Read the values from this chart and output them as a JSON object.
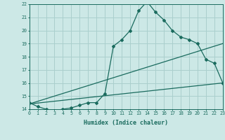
{
  "title": "",
  "xlabel": "Humidex (Indice chaleur)",
  "bg_color": "#cce8e6",
  "grid_color": "#aacfcd",
  "line_color": "#1a6b5e",
  "xmin": 0,
  "xmax": 23,
  "ymin": 14,
  "ymax": 22,
  "line1_x": [
    0,
    1,
    2,
    3,
    4,
    5,
    6,
    7,
    8,
    9,
    10,
    11,
    12,
    13,
    14,
    15,
    16,
    17,
    18,
    19,
    20,
    21,
    22,
    23
  ],
  "line1_y": [
    14.5,
    14.2,
    14.0,
    13.9,
    14.0,
    14.1,
    14.3,
    14.5,
    14.5,
    15.2,
    18.8,
    19.3,
    20.0,
    21.5,
    22.2,
    21.4,
    20.8,
    20.0,
    19.5,
    19.3,
    19.0,
    17.8,
    17.5,
    16.0
  ],
  "line2_x": [
    0,
    23
  ],
  "line2_y": [
    14.4,
    19.0
  ],
  "line3_x": [
    0,
    23
  ],
  "line3_y": [
    14.4,
    16.0
  ],
  "ytick_labels": [
    "14",
    "15",
    "16",
    "17",
    "18",
    "19",
    "20",
    "21",
    "22"
  ]
}
